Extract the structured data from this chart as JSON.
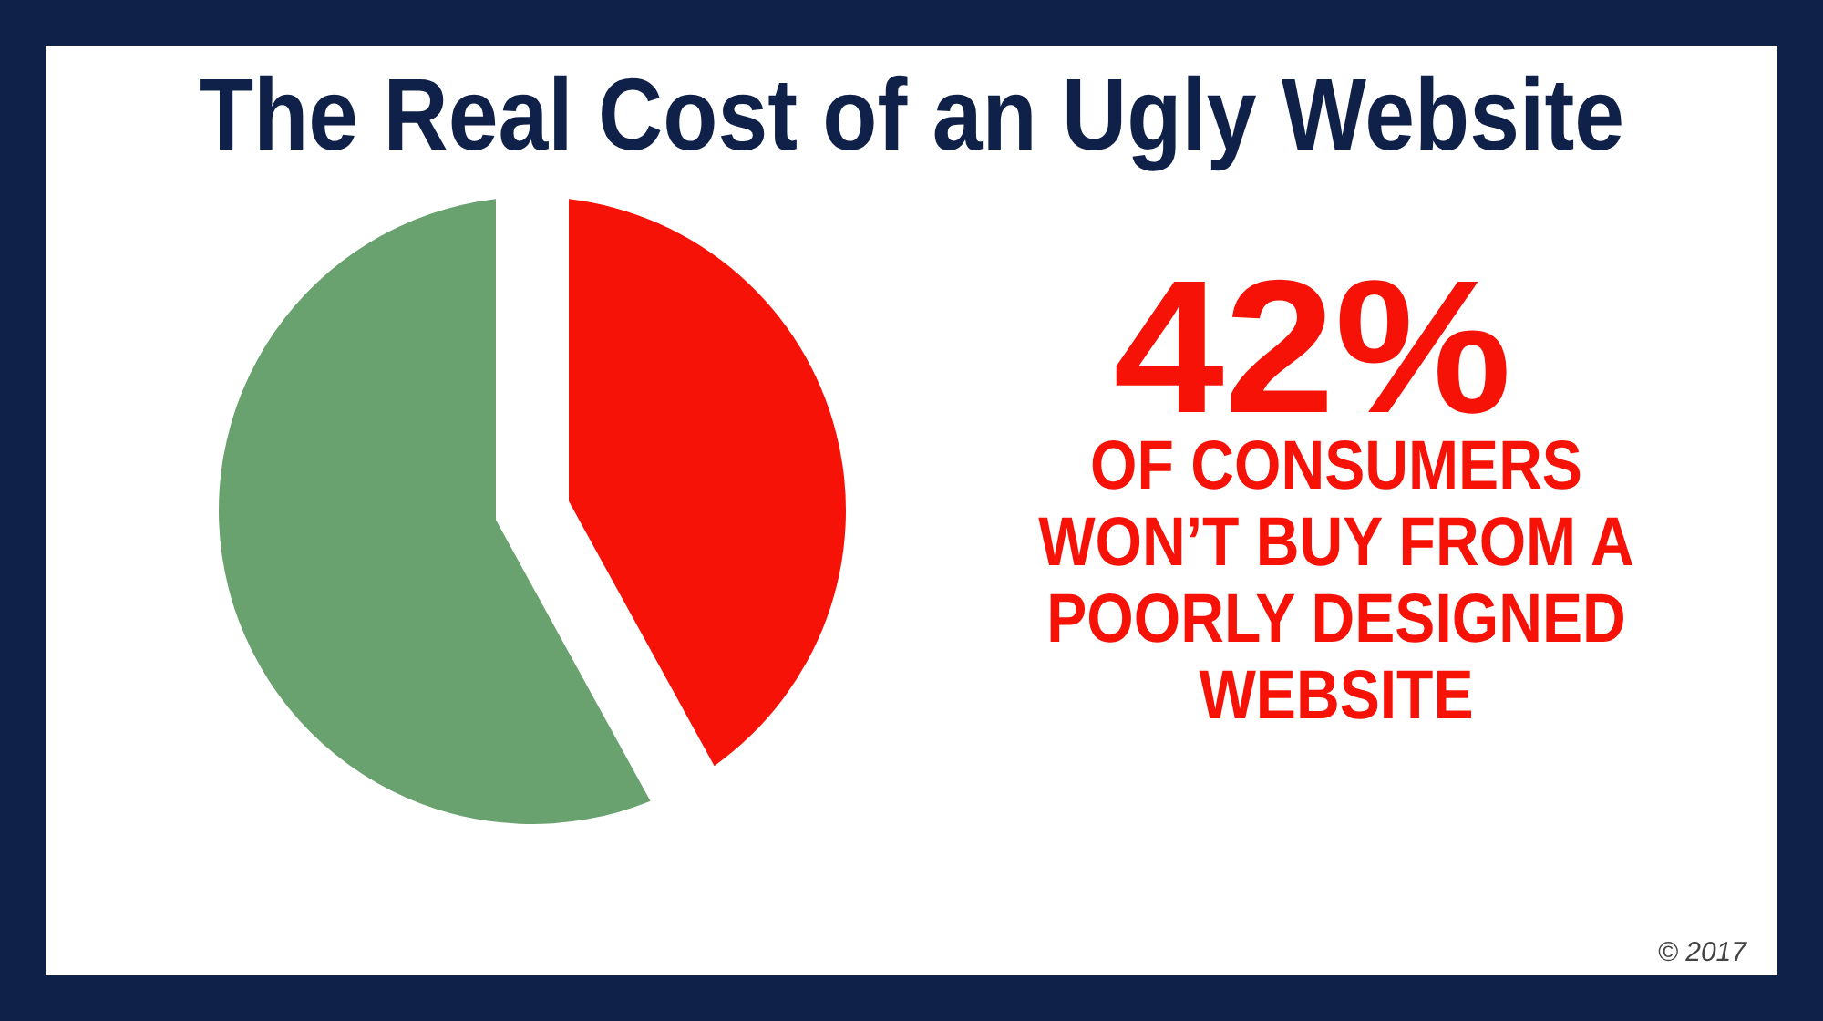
{
  "chart_data": {
    "type": "pie",
    "title": "The Real Cost of an Ugly Website",
    "categories": [
      null,
      null
    ],
    "values": [
      42,
      58
    ],
    "colors": [
      "#f71208",
      "#6aa26f"
    ],
    "annotations": [
      "42%",
      "OF CONSUMERS WON’T BUY FROM A POORLY DESIGNED WEBSITE",
      "© 2017"
    ]
  }
}
